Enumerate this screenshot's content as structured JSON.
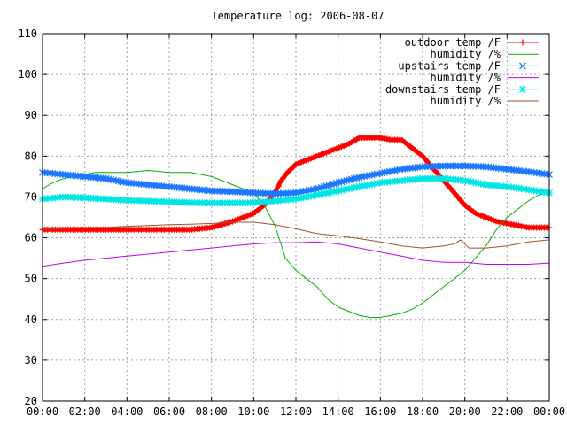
{
  "chart_data": {
    "type": "line",
    "title": "Temperature log: 2006-08-07",
    "xlabel": "",
    "ylabel": "",
    "xlim": [
      0,
      24
    ],
    "ylim": [
      20,
      110
    ],
    "grid": true,
    "legend_position": "top-right",
    "x_ticks": [
      "00:00",
      "02:00",
      "04:00",
      "06:00",
      "08:00",
      "10:00",
      "12:00",
      "14:00",
      "16:00",
      "18:00",
      "20:00",
      "22:00",
      "00:00"
    ],
    "y_ticks": [
      "20",
      "30",
      "40",
      "50",
      "60",
      "70",
      "80",
      "90",
      "100",
      "110"
    ],
    "series": [
      {
        "name": "outdoor temp /F",
        "color": "#ff0000",
        "marker": "plus",
        "x": [
          0,
          1,
          2,
          3,
          4,
          5,
          6,
          7,
          8,
          9,
          10,
          10.5,
          11,
          11.3,
          11.6,
          12,
          12.5,
          13,
          13.5,
          14,
          14.5,
          15,
          15.5,
          16,
          16.5,
          17,
          17.5,
          18,
          18.5,
          19,
          19.5,
          20,
          20.5,
          21,
          21.5,
          22,
          22.5,
          23,
          23.5,
          24
        ],
        "values": [
          62,
          62,
          62,
          62,
          62,
          62,
          62,
          62,
          62.5,
          64,
          66,
          68,
          71,
          74,
          76,
          78,
          79,
          80,
          81,
          82,
          83,
          84.5,
          84.5,
          84.5,
          84,
          84,
          82,
          80,
          77,
          74,
          71,
          68,
          66,
          65,
          64,
          63.5,
          63,
          62.5,
          62.5,
          62.5
        ]
      },
      {
        "name": "humidity /%",
        "color": "#00b000",
        "marker": "none",
        "x": [
          0,
          0.5,
          1,
          1.5,
          2,
          2.5,
          3,
          3.5,
          4,
          5,
          6,
          7,
          8,
          9,
          10,
          10.5,
          11,
          11.2,
          11.5,
          12,
          12.5,
          13,
          13.5,
          14,
          14.5,
          15,
          15.5,
          16,
          16.5,
          17,
          17.5,
          18,
          18.5,
          19,
          19.5,
          20,
          20.5,
          21,
          21.5,
          22,
          22.5,
          23,
          23.5,
          24
        ],
        "values": [
          72,
          73.5,
          74.5,
          75,
          75.5,
          76,
          76,
          76,
          76,
          76.5,
          76,
          76,
          75,
          73,
          71,
          68,
          63,
          60,
          55,
          52,
          50,
          48,
          45,
          43,
          42,
          41,
          40.5,
          40.5,
          41,
          41.5,
          42.5,
          44,
          46,
          48,
          50,
          52,
          55,
          58,
          62,
          65,
          67,
          69,
          70.5,
          71
        ]
      },
      {
        "name": "upstairs temp /F",
        "color": "#1e78ff",
        "marker": "cross",
        "x": [
          0,
          1,
          2,
          3,
          4,
          5,
          6,
          7,
          8,
          9,
          10,
          11,
          12,
          13,
          14,
          15,
          16,
          17,
          18,
          19,
          20,
          21,
          22,
          23,
          24
        ],
        "values": [
          76,
          75.5,
          75,
          74.5,
          73.5,
          73,
          72.5,
          72,
          71.5,
          71.3,
          71,
          70.8,
          71,
          72,
          73.5,
          74.8,
          75.8,
          76.8,
          77.4,
          77.6,
          77.6,
          77.4,
          76.8,
          76.2,
          75.5
        ]
      },
      {
        "name": "humidity /%",
        "color": "#c000ff",
        "marker": "none",
        "x": [
          0,
          1,
          2,
          3,
          4,
          5,
          6,
          7,
          8,
          9,
          10,
          11,
          12,
          13,
          14,
          15,
          16,
          17,
          18,
          19,
          20,
          21,
          22,
          23,
          24
        ],
        "values": [
          53,
          53.8,
          54.5,
          55,
          55.5,
          56,
          56.5,
          57,
          57.5,
          58,
          58.5,
          58.8,
          58.8,
          59,
          58.5,
          57.5,
          56.5,
          55.5,
          54.5,
          54,
          54,
          53.5,
          53.5,
          53.5,
          53.8
        ]
      },
      {
        "name": "downstairs temp /F",
        "color": "#00e5e5",
        "marker": "star",
        "x": [
          0,
          1,
          2,
          3,
          4,
          5,
          6,
          7,
          8,
          9,
          10,
          11,
          12,
          13,
          14,
          15,
          16,
          17,
          18,
          19,
          20,
          21,
          22,
          23,
          24
        ],
        "values": [
          69.5,
          70,
          69.8,
          69.5,
          69.2,
          69,
          68.8,
          68.6,
          68.5,
          68.5,
          68.6,
          69,
          69.5,
          70.5,
          71.5,
          72.5,
          73.5,
          74,
          74.5,
          74.5,
          74,
          73,
          72.5,
          71.8,
          71
        ]
      },
      {
        "name": "humidity /%",
        "color": "#a0522d",
        "marker": "none",
        "x": [
          0,
          1,
          2,
          3,
          4,
          5,
          6,
          7,
          8,
          9,
          10,
          11,
          12,
          13,
          14,
          15,
          16,
          17,
          18,
          19,
          19.5,
          19.8,
          20.2,
          21,
          22,
          23,
          24
        ],
        "values": [
          62,
          62.3,
          62.5,
          62.5,
          62.8,
          63,
          63.2,
          63.3,
          63.5,
          63.8,
          63.8,
          63.2,
          62.2,
          61,
          60.5,
          59.8,
          59,
          58,
          57.5,
          58,
          58.5,
          59.5,
          57.5,
          57.5,
          58,
          59,
          59.5
        ]
      }
    ]
  }
}
